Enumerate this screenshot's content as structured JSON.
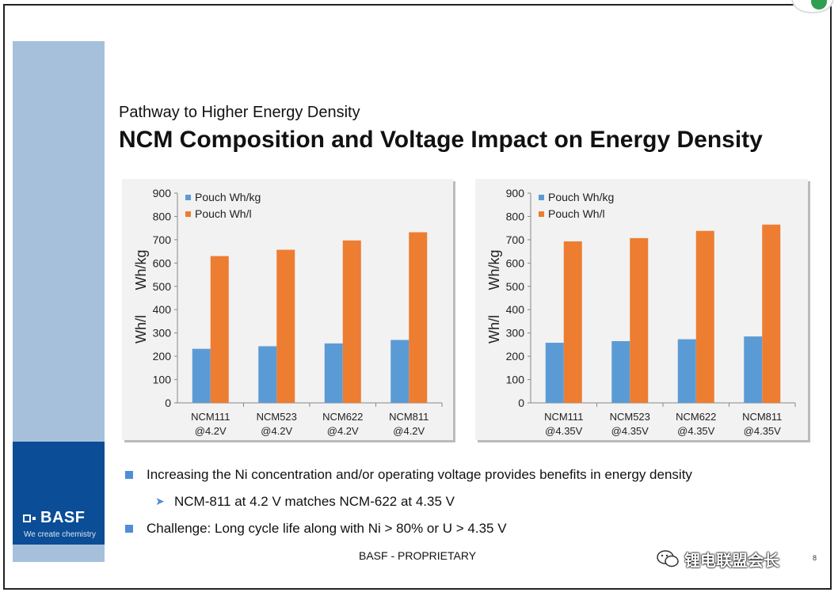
{
  "header": {
    "subtitle": "Pathway to Higher Energy Density",
    "title": "NCM Composition and Voltage Impact on Energy Density"
  },
  "brand": {
    "logo_text": "BASF",
    "tagline": "We create chemistry"
  },
  "colors": {
    "series_blue": "#5b9bd5",
    "series_orange": "#ed7d31",
    "brand_blue": "#0b4d96",
    "side_light": "#a6c0dc"
  },
  "chart_data": [
    {
      "type": "bar",
      "categories": [
        [
          "NCM111",
          "@4.2V"
        ],
        [
          "NCM523",
          "@4.2V"
        ],
        [
          "NCM622",
          "@4.2V"
        ],
        [
          "NCM811",
          "@4.2V"
        ]
      ],
      "series": [
        {
          "name": "Pouch Wh/kg",
          "values": [
            232,
            243,
            255,
            270
          ],
          "color": "#5b9bd5"
        },
        {
          "name": "Pouch Wh/l",
          "values": [
            630,
            657,
            697,
            732
          ],
          "color": "#ed7d31"
        }
      ],
      "ylabel": [
        "Wh/l",
        "Wh/kg"
      ],
      "ylim": [
        0,
        900
      ],
      "yticks": [
        0,
        100,
        200,
        300,
        400,
        500,
        600,
        700,
        800,
        900
      ],
      "legend": "top-left",
      "grid": false
    },
    {
      "type": "bar",
      "categories": [
        [
          "NCM111",
          "@4.35V"
        ],
        [
          "NCM523",
          "@4.35V"
        ],
        [
          "NCM622",
          "@4.35V"
        ],
        [
          "NCM811",
          "@4.35V"
        ]
      ],
      "series": [
        {
          "name": "Pouch Wh/kg",
          "values": [
            258,
            265,
            273,
            285
          ],
          "color": "#5b9bd5"
        },
        {
          "name": "Pouch Wh/l",
          "values": [
            693,
            707,
            738,
            765
          ],
          "color": "#ed7d31"
        }
      ],
      "ylabel": [
        "Wh/l",
        "Wh/kg"
      ],
      "ylim": [
        0,
        900
      ],
      "yticks": [
        0,
        100,
        200,
        300,
        400,
        500,
        600,
        700,
        800,
        900
      ],
      "legend": "top-left",
      "grid": false
    }
  ],
  "bullets": {
    "b1": "Increasing the Ni concentration and/or operating voltage provides benefits in energy density",
    "b1_sub": "NCM-811 at 4.2 V matches NCM-622 at 4.35 V",
    "b2": "Challenge: Long cycle life along with Ni > 80% or U > 4.35 V"
  },
  "footer": {
    "text": "BASF - PROPRIETARY",
    "page": "8"
  },
  "watermark": {
    "text": "锂电联盟会长"
  }
}
